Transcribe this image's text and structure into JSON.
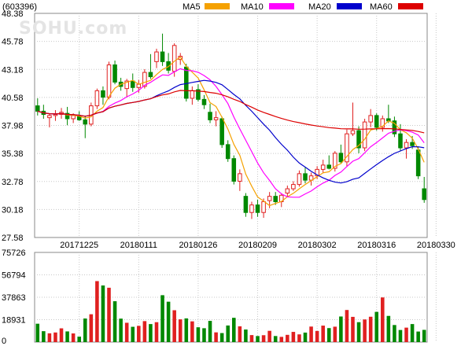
{
  "header": {
    "stock_code": "(603396)",
    "watermark": "SOHU.com"
  },
  "legend": [
    {
      "label": "MA5",
      "color": "#f5a100"
    },
    {
      "label": "MA10",
      "color": "#ff00ff"
    },
    {
      "label": "MA20",
      "color": "#0000cc"
    },
    {
      "label": "MA60",
      "color": "#dd0000"
    }
  ],
  "colors": {
    "up": "#e02020",
    "down": "#008800",
    "grid": "#c8c8c8",
    "frame": "#888888"
  },
  "chart_data": [
    {
      "type": "candlestick",
      "title": "",
      "price_ticks": [
        "48.38",
        "45.78",
        "43.18",
        "40.58",
        "37.98",
        "35.38",
        "32.78",
        "30.18",
        "27.58"
      ],
      "ylim": [
        27.58,
        48.38
      ],
      "x_tick_labels": [
        {
          "index": 7,
          "label": "20171225"
        },
        {
          "index": 17,
          "label": "20180111"
        },
        {
          "index": 27,
          "label": "20180126"
        },
        {
          "index": 37,
          "label": "20180209"
        },
        {
          "index": 47,
          "label": "20180302"
        },
        {
          "index": 57,
          "label": "20180316"
        },
        {
          "index": 67,
          "label": "20180330"
        }
      ],
      "ohlc": [
        [
          39.8,
          40.5,
          38.9,
          39.3
        ],
        [
          39.3,
          39.9,
          38.6,
          39.0
        ],
        [
          38.7,
          39.1,
          37.8,
          38.9
        ],
        [
          38.9,
          39.4,
          38.4,
          39.0
        ],
        [
          39.0,
          39.6,
          38.6,
          39.2
        ],
        [
          39.1,
          39.7,
          38.0,
          38.6
        ],
        [
          38.6,
          39.1,
          38.2,
          38.9
        ],
        [
          38.9,
          39.3,
          38.4,
          38.5
        ],
        [
          38.5,
          38.9,
          36.8,
          38.1
        ],
        [
          38.1,
          40.1,
          37.9,
          39.8
        ],
        [
          39.8,
          41.4,
          39.5,
          41.2
        ],
        [
          41.2,
          41.6,
          39.9,
          40.6
        ],
        [
          40.6,
          43.9,
          40.4,
          43.6
        ],
        [
          43.6,
          44.0,
          41.8,
          42.0
        ],
        [
          42.0,
          42.4,
          41.2,
          41.6
        ],
        [
          41.4,
          42.3,
          40.6,
          42.1
        ],
        [
          42.1,
          42.8,
          41.1,
          41.5
        ],
        [
          41.5,
          42.2,
          41.0,
          41.8
        ],
        [
          41.6,
          43.2,
          41.4,
          42.9
        ],
        [
          42.9,
          44.6,
          42.3,
          42.5
        ],
        [
          43.9,
          45.1,
          43.3,
          44.8
        ],
        [
          44.8,
          46.5,
          43.5,
          43.9
        ],
        [
          43.9,
          44.7,
          42.8,
          43.1
        ],
        [
          43.0,
          45.6,
          42.5,
          45.4
        ],
        [
          44.1,
          44.7,
          43.6,
          44.4
        ],
        [
          43.4,
          43.7,
          40.2,
          40.5
        ],
        [
          40.5,
          41.6,
          39.9,
          41.2
        ],
        [
          41.3,
          41.8,
          40.2,
          40.4
        ],
        [
          40.4,
          40.8,
          39.5,
          39.9
        ],
        [
          39.2,
          40.0,
          38.2,
          38.5
        ],
        [
          38.5,
          39.3,
          37.9,
          38.7
        ],
        [
          38.6,
          38.8,
          35.9,
          36.2
        ],
        [
          36.2,
          36.6,
          34.6,
          34.9
        ],
        [
          34.9,
          35.2,
          32.5,
          32.8
        ],
        [
          32.8,
          33.9,
          31.9,
          33.5
        ],
        [
          31.4,
          31.7,
          29.5,
          29.9
        ],
        [
          29.9,
          30.9,
          29.3,
          30.6
        ],
        [
          30.6,
          31.1,
          29.5,
          29.9
        ],
        [
          29.9,
          31.2,
          29.4,
          30.9
        ],
        [
          31.0,
          31.8,
          30.3,
          31.4
        ],
        [
          31.4,
          31.8,
          30.6,
          30.9
        ],
        [
          30.9,
          31.7,
          30.4,
          31.5
        ],
        [
          31.7,
          32.4,
          31.3,
          32.1
        ],
        [
          32.1,
          32.8,
          31.9,
          32.5
        ],
        [
          32.5,
          33.8,
          32.3,
          33.5
        ],
        [
          33.5,
          34.1,
          32.6,
          32.9
        ],
        [
          32.9,
          33.6,
          32.4,
          33.3
        ],
        [
          33.3,
          34.2,
          33.0,
          33.9
        ],
        [
          33.9,
          34.8,
          33.6,
          34.3
        ],
        [
          34.3,
          35.2,
          33.9,
          34.0
        ],
        [
          34.0,
          35.6,
          33.7,
          35.4
        ],
        [
          35.4,
          36.2,
          34.4,
          34.6
        ],
        [
          34.6,
          37.6,
          34.2,
          37.2
        ],
        [
          37.2,
          40.1,
          37.0,
          37.5
        ],
        [
          37.5,
          37.9,
          35.4,
          35.9
        ],
        [
          35.9,
          38.6,
          35.6,
          38.3
        ],
        [
          38.3,
          39.5,
          37.8,
          38.9
        ],
        [
          38.9,
          39.1,
          37.5,
          37.8
        ],
        [
          37.8,
          38.9,
          37.4,
          38.6
        ],
        [
          38.6,
          39.9,
          38.2,
          38.4
        ],
        [
          38.4,
          38.8,
          36.9,
          37.2
        ],
        [
          37.2,
          38.1,
          35.6,
          35.9
        ],
        [
          35.9,
          36.7,
          34.9,
          36.4
        ],
        [
          36.4,
          37.0,
          35.8,
          36.1
        ],
        [
          35.7,
          36.0,
          33.0,
          33.3
        ],
        [
          32.1,
          33.2,
          30.8,
          31.1
        ]
      ],
      "volume_ticks": [
        "75726",
        "56794",
        "37863",
        "18931",
        "0"
      ],
      "volume_max": 75726,
      "volumes": [
        15500,
        9200,
        7400,
        8100,
        11600,
        9000,
        7300,
        4600,
        19900,
        23500,
        51500,
        47800,
        45900,
        34500,
        19800,
        16300,
        12900,
        13700,
        17700,
        15200,
        16800,
        39600,
        34100,
        26900,
        19200,
        20000,
        17500,
        12500,
        11700,
        17900,
        8200,
        7600,
        14000,
        20500,
        13300,
        10600,
        5900,
        5100,
        5800,
        9500,
        5100,
        4400,
        6100,
        8600,
        6500,
        8000,
        13100,
        9400,
        13900,
        11800,
        13000,
        21600,
        27100,
        21300,
        16800,
        19100,
        21400,
        25500,
        37700,
        22100,
        14400,
        10200,
        12200,
        15200,
        8900,
        10300
      ]
    }
  ]
}
